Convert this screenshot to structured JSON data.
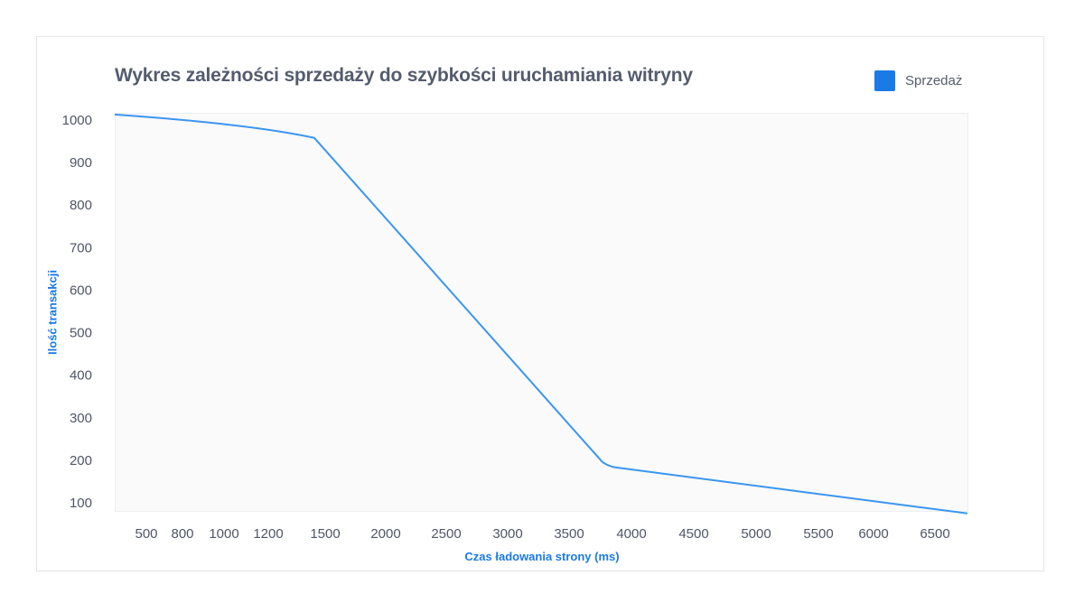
{
  "chart_data": {
    "type": "line",
    "title": "Wykres zależności sprzedaży do szybkości uruchamiania witryny",
    "xlabel": "Czas ładowania strony (ms)",
    "ylabel": "Ilość transakcji",
    "legend": {
      "position": "top-right",
      "entries": [
        "Sprzedaż"
      ]
    },
    "x_ticks": [
      "500",
      "800",
      "1000",
      "1200",
      "1500",
      "2000",
      "2500",
      "3000",
      "3500",
      "4000",
      "4500",
      "5000",
      "5500",
      "6000",
      "6500"
    ],
    "y_ticks": [
      "100",
      "200",
      "300",
      "400",
      "500",
      "600",
      "700",
      "800",
      "900",
      "1000"
    ],
    "ylim": [
      75,
      1020
    ],
    "grid": false,
    "series": [
      {
        "name": "Sprzedaż",
        "color": "#1a7ae6",
        "points": [
          {
            "x": "0",
            "y": 1013
          },
          {
            "x": "1200",
            "y": 975
          },
          {
            "x": "1500",
            "y": 958
          },
          {
            "x": "4000",
            "y": 190
          },
          {
            "x": "6500",
            "y": 75
          }
        ]
      }
    ]
  }
}
